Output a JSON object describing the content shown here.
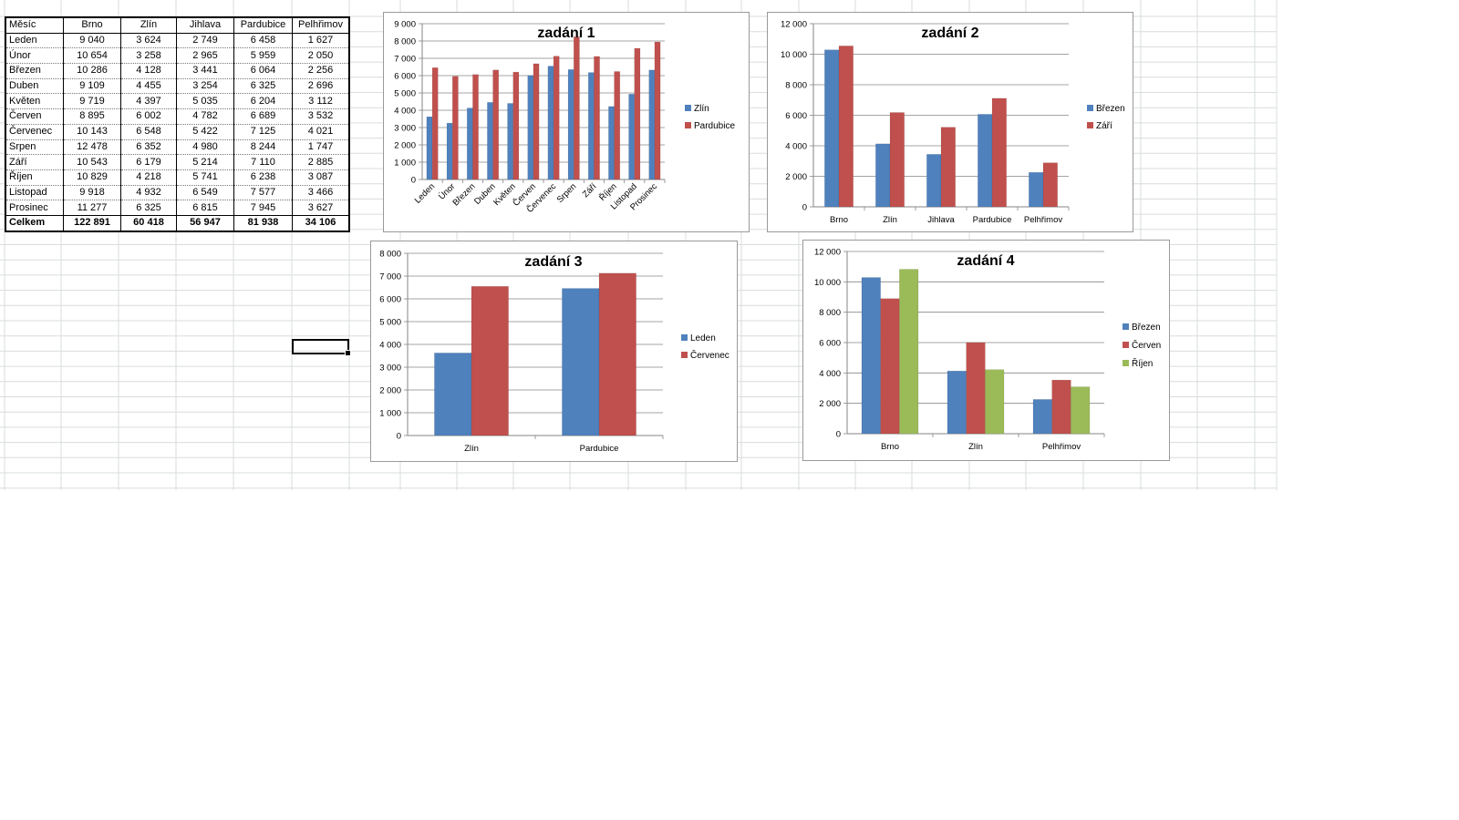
{
  "table": {
    "header": [
      "Měsíc",
      "Brno",
      "Zlín",
      "Jihlava",
      "Pardubice",
      "Pelhřimov"
    ],
    "rows": [
      [
        "Leden",
        "9 040",
        "3 624",
        "2 749",
        "6 458",
        "1 627"
      ],
      [
        "Únor",
        "10 654",
        "3 258",
        "2 965",
        "5 959",
        "2 050"
      ],
      [
        "Březen",
        "10 286",
        "4 128",
        "3 441",
        "6 064",
        "2 256"
      ],
      [
        "Duben",
        "9 109",
        "4 455",
        "3 254",
        "6 325",
        "2 696"
      ],
      [
        "Květen",
        "9 719",
        "4 397",
        "5 035",
        "6 204",
        "3 112"
      ],
      [
        "Červen",
        "8 895",
        "6 002",
        "4 782",
        "6 689",
        "3 532"
      ],
      [
        "Červenec",
        "10 143",
        "6 548",
        "5 422",
        "7 125",
        "4 021"
      ],
      [
        "Srpen",
        "12 478",
        "6 352",
        "4 980",
        "8 244",
        "1 747"
      ],
      [
        "Září",
        "10 543",
        "6 179",
        "5 214",
        "7 110",
        "2 885"
      ],
      [
        "Říjen",
        "10 829",
        "4 218",
        "5 741",
        "6 238",
        "3 087"
      ],
      [
        "Listopad",
        "9 918",
        "4 932",
        "6 549",
        "7 577",
        "3 466"
      ],
      [
        "Prosinec",
        "11 277",
        "6 325",
        "6 815",
        "7 945",
        "3 627"
      ]
    ],
    "total": [
      "Celkem",
      "122 891",
      "60 418",
      "56 947",
      "81 938",
      "34 106"
    ]
  },
  "colors": {
    "blue": "#4f81bd",
    "red": "#c0504d",
    "green": "#9bbb59",
    "gridline": "#868686",
    "sheet_grid": "#dadcdd"
  },
  "chart_data": [
    {
      "type": "bar",
      "title": "zadání 1",
      "categories": [
        "Leden",
        "Únor",
        "Březen",
        "Duben",
        "Květen",
        "Červen",
        "Červenec",
        "Srpen",
        "Září",
        "Říjen",
        "Listopad",
        "Prosinec"
      ],
      "series": [
        {
          "name": "Zlín",
          "color": "#4f81bd",
          "values": [
            3624,
            3258,
            4128,
            4455,
            4397,
            6002,
            6548,
            6352,
            6179,
            4218,
            4932,
            6325
          ]
        },
        {
          "name": "Pardubice",
          "color": "#c0504d",
          "values": [
            6458,
            5959,
            6064,
            6325,
            6204,
            6689,
            7125,
            8244,
            7110,
            6238,
            7577,
            7945
          ]
        }
      ],
      "ylim": [
        0,
        9000
      ],
      "yticks": [
        "0",
        "1 000",
        "2 000",
        "3 000",
        "4 000",
        "5 000",
        "6 000",
        "7 000",
        "8 000",
        "9 000"
      ],
      "xlabel_rotation": "-45"
    },
    {
      "type": "bar",
      "title": "zadání 2",
      "categories": [
        "Brno",
        "Zlín",
        "Jihlava",
        "Pardubice",
        "Pelhřimov"
      ],
      "series": [
        {
          "name": "Březen",
          "color": "#4f81bd",
          "values": [
            10286,
            4128,
            3441,
            6064,
            2256
          ]
        },
        {
          "name": "Září",
          "color": "#c0504d",
          "values": [
            10543,
            6179,
            5214,
            7110,
            2885
          ]
        }
      ],
      "ylim": [
        0,
        12000
      ],
      "yticks": [
        "0",
        "2 000",
        "4 000",
        "6 000",
        "8 000",
        "10 000",
        "12 000"
      ]
    },
    {
      "type": "bar",
      "title": "zadání 3",
      "categories": [
        "Zlín",
        "Pardubice"
      ],
      "series": [
        {
          "name": "Leden",
          "color": "#4f81bd",
          "values": [
            3624,
            6458
          ]
        },
        {
          "name": "Červenec",
          "color": "#c0504d",
          "values": [
            6548,
            7125
          ]
        }
      ],
      "ylim": [
        0,
        8000
      ],
      "yticks": [
        "0",
        "1 000",
        "2 000",
        "3 000",
        "4 000",
        "5 000",
        "6 000",
        "7 000",
        "8 000"
      ]
    },
    {
      "type": "bar",
      "title": "zadání 4",
      "categories": [
        "Brno",
        "Zlín",
        "Pelhřimov"
      ],
      "series": [
        {
          "name": "Březen",
          "color": "#4f81bd",
          "values": [
            10286,
            4128,
            2256
          ]
        },
        {
          "name": "Červen",
          "color": "#c0504d",
          "values": [
            8895,
            6002,
            3532
          ]
        },
        {
          "name": "Říjen",
          "color": "#9bbb59",
          "values": [
            10829,
            4218,
            3087
          ]
        }
      ],
      "ylim": [
        0,
        12000
      ],
      "yticks": [
        "0",
        "2 000",
        "4 000",
        "6 000",
        "8 000",
        "10 000",
        "12 000"
      ]
    }
  ]
}
